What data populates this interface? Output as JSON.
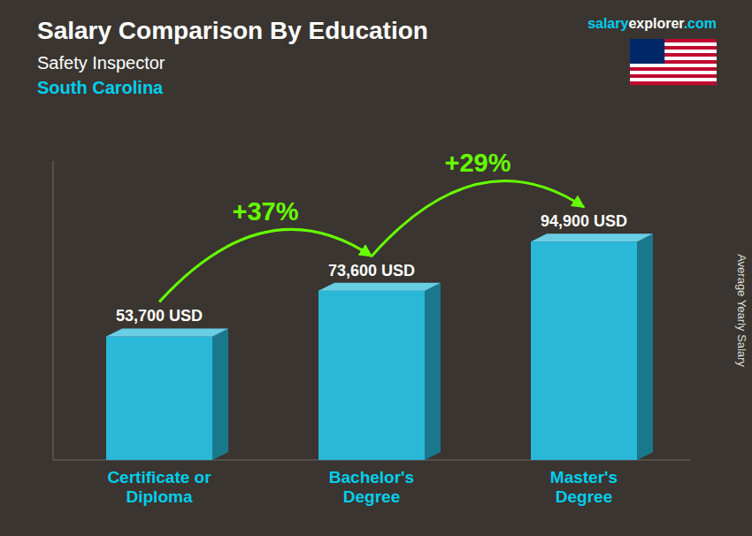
{
  "chart_data": {
    "type": "bar",
    "title": "Salary Comparison By Education",
    "subtitle": "Safety Inspector",
    "ylabel": "Average Yearly Salary",
    "categories": [
      "Certificate or\nDiploma",
      "Bachelor's\nDegree",
      "Master's\nDegree"
    ],
    "values": [
      53700,
      73600,
      94900
    ],
    "value_labels": [
      "53,700 USD",
      "73,600 USD",
      "94,900 USD"
    ],
    "data_labels": true,
    "color": "#29b8d8",
    "ylim": [
      0,
      130000
    ],
    "tick_labels": "x",
    "grid": false,
    "annotations": [
      {
        "text": "South Carolina",
        "color": "#00cfee"
      },
      {
        "parts": [
          "salary",
          "explorer",
          ".com"
        ],
        "colors": [
          "#00cfee",
          "#ffffff",
          "#00cfee"
        ]
      },
      {
        "text": "+37%",
        "color": "#66ff00",
        "from": 0,
        "to": 1
      },
      {
        "text": "+29%",
        "color": "#66ff00",
        "from": 1,
        "to": 2
      }
    ]
  }
}
